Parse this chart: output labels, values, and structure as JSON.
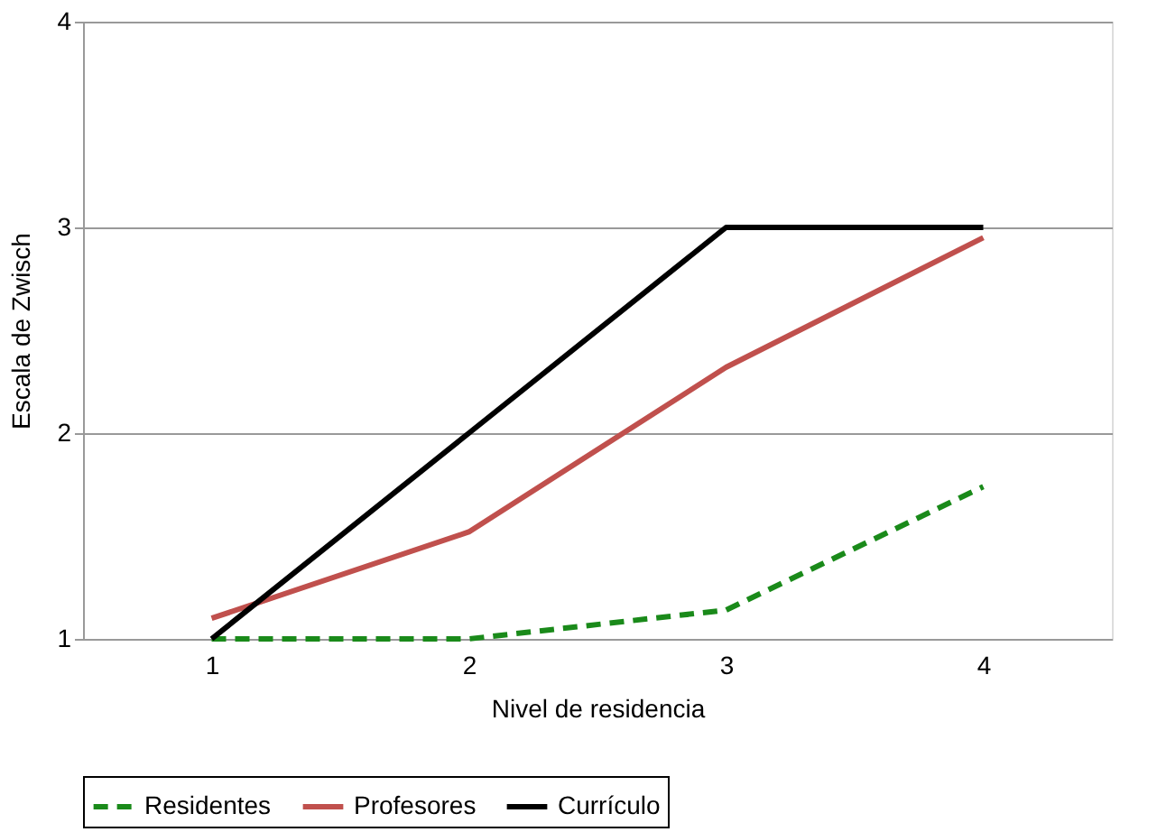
{
  "chart_data": {
    "type": "line",
    "xlabel": "Nivel de residencia",
    "ylabel": "Escala de Zwisch",
    "categories": [
      "1",
      "2",
      "3",
      "4"
    ],
    "series": [
      {
        "name": "Residentes",
        "color": "#1a8a1a",
        "line_style": "dashed",
        "values": [
          1,
          1,
          1.14,
          1.74
        ]
      },
      {
        "name": "Profesores",
        "color": "#c0504d",
        "line_style": "solid",
        "values": [
          1.1,
          1.52,
          2.32,
          2.95
        ]
      },
      {
        "name": "Currículo",
        "color": "#000000",
        "line_style": "solid",
        "values": [
          1,
          2,
          3,
          3
        ]
      }
    ],
    "ylim": [
      1,
      4
    ],
    "yticks": [
      1,
      2,
      3,
      4
    ],
    "grid": "y",
    "legend": "bottom",
    "marker": "none"
  }
}
